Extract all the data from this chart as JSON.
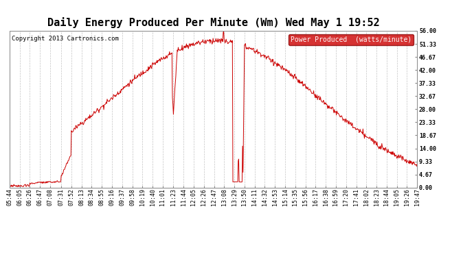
{
  "title": "Daily Energy Produced Per Minute (Wm) Wed May 1 19:52",
  "copyright": "Copyright 2013 Cartronics.com",
  "legend_label": "Power Produced  (watts/minute)",
  "legend_bg": "#cc0000",
  "legend_fg": "#ffffff",
  "line_color": "#cc0000",
  "bg_color": "#ffffff",
  "grid_color": "#aaaaaa",
  "ylabel_right": [
    "0.00",
    "4.67",
    "9.33",
    "14.00",
    "18.67",
    "23.33",
    "28.00",
    "32.67",
    "37.33",
    "42.00",
    "46.67",
    "51.33",
    "56.00"
  ],
  "ylim": [
    0,
    56.0
  ],
  "x_tick_labels": [
    "05:44",
    "06:05",
    "06:26",
    "06:47",
    "07:08",
    "07:31",
    "07:52",
    "08:13",
    "08:34",
    "08:55",
    "09:16",
    "09:37",
    "09:58",
    "10:19",
    "10:40",
    "11:01",
    "11:23",
    "11:44",
    "12:05",
    "12:26",
    "12:47",
    "13:08",
    "13:29",
    "13:50",
    "14:11",
    "14:32",
    "14:53",
    "15:14",
    "15:35",
    "15:56",
    "16:17",
    "16:38",
    "16:59",
    "17:20",
    "17:41",
    "18:02",
    "18:23",
    "18:44",
    "19:05",
    "19:26",
    "19:47"
  ],
  "title_fontsize": 11,
  "copyright_fontsize": 6.5,
  "tick_fontsize": 6,
  "legend_fontsize": 7
}
